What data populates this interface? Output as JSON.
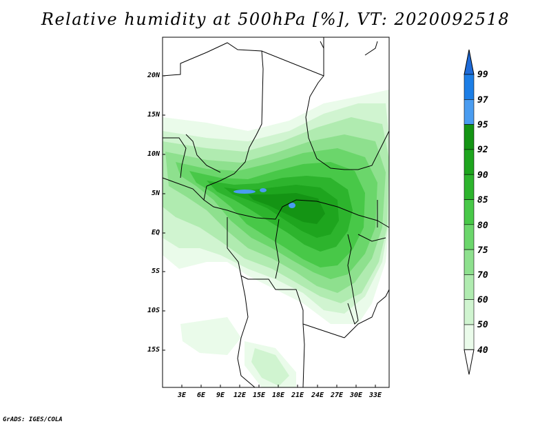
{
  "title": "Relative humidity at 500hPa [%], VT: 2020092518",
  "map": {
    "y_ticks": [
      "20N",
      "15N",
      "10N",
      "5N",
      "EQ",
      "5S",
      "10S",
      "15S"
    ],
    "x_ticks": [
      "3E",
      "6E",
      "9E",
      "12E",
      "15E",
      "18E",
      "21E",
      "24E",
      "27E",
      "30E",
      "33E"
    ]
  },
  "colorbar": {
    "levels": [
      "99",
      "97",
      "95",
      "92",
      "90",
      "85",
      "80",
      "75",
      "70",
      "60",
      "50",
      "40"
    ],
    "colors": [
      "#1e6bd8",
      "#1c7ee6",
      "#4a9cf0",
      "#149414",
      "#1ea51e",
      "#2db42d",
      "#48c848",
      "#6bd66b",
      "#8ee08e",
      "#b0ebb0",
      "#d0f4d0",
      "#eafbea",
      "#ffffff"
    ]
  },
  "credit": "GrADS: IGES/COLA"
}
